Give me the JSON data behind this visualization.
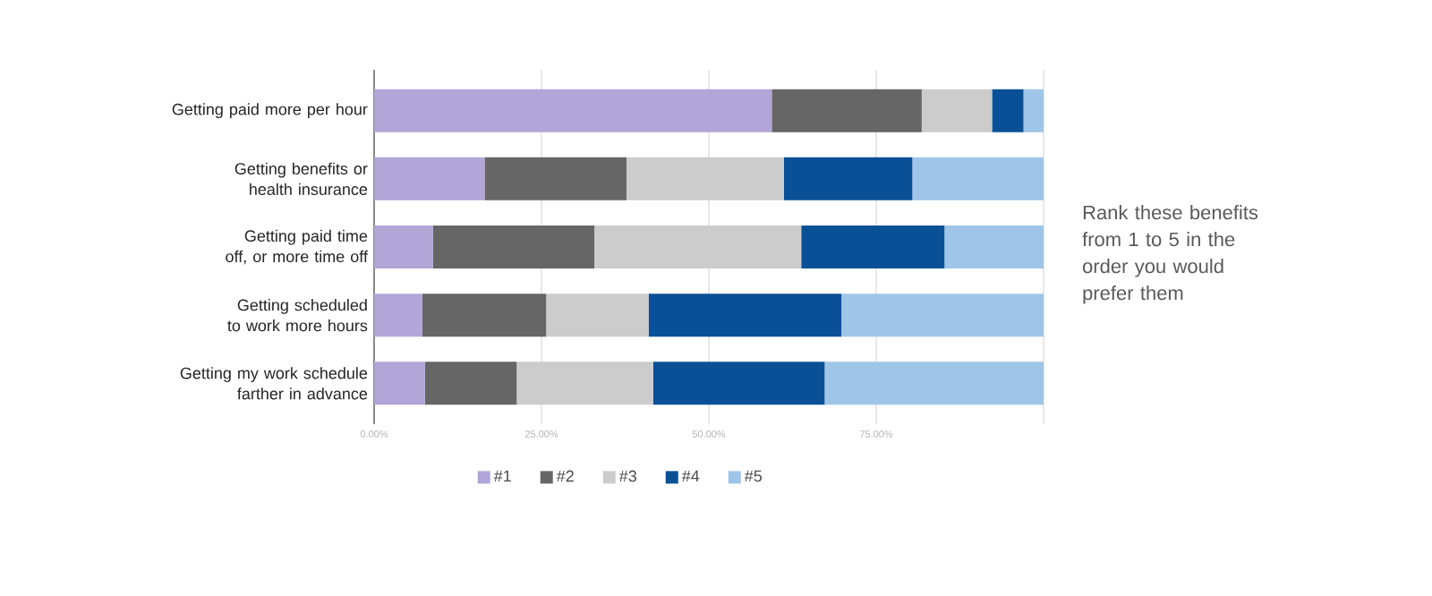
{
  "chart_data": {
    "type": "bar",
    "orientation": "horizontal",
    "stacked": true,
    "categories": [
      "Getting paid more per hour",
      "Getting benefits or health insurance",
      "Getting paid time off, or more time off",
      "Getting scheduled to work more hours",
      "Getting my work schedule farther in advance"
    ],
    "series": [
      {
        "name": "#1",
        "color": "#b2a5d7",
        "values": [
          59.4,
          16.5,
          8.8,
          7.2,
          7.6
        ]
      },
      {
        "name": "#2",
        "color": "#666666",
        "values": [
          22.4,
          21.2,
          24.1,
          18.5,
          13.7
        ]
      },
      {
        "name": "#3",
        "color": "#cccccc",
        "values": [
          10.5,
          23.5,
          30.9,
          15.3,
          20.4
        ]
      },
      {
        "name": "#4",
        "color": "#0a5096",
        "values": [
          4.7,
          19.2,
          21.4,
          28.8,
          25.6
        ]
      },
      {
        "name": "#5",
        "color": "#9fc5e8",
        "values": [
          3.0,
          19.6,
          14.8,
          30.2,
          32.7
        ]
      }
    ],
    "xlim": [
      0,
      100
    ],
    "xticks": [
      {
        "value": 0,
        "label": "0.00%"
      },
      {
        "value": 25,
        "label": "25.00%"
      },
      {
        "value": 50,
        "label": "50.00%"
      },
      {
        "value": 75,
        "label": "75.00%"
      },
      {
        "value": 100,
        "label": null
      }
    ],
    "grid": "x",
    "legend": "bottom",
    "annotations": [
      "Rank these benefits from 1 to 5 in the order you would prefer them"
    ]
  }
}
